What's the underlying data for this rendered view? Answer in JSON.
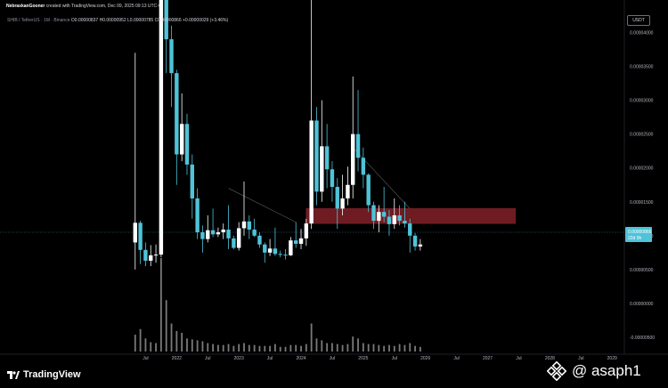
{
  "header": {
    "author": "NebraskanGooner",
    "created_text": "created with TradingView.com, Dec 09, 2025 09:13 UTC-6"
  },
  "symbol": {
    "pair": "SHIB / TetherUS · 1M · Binance",
    "ohlc": "O0.00000837 H0.00000952 L0.00000785 C0.00000866 +0.00000029 (+3.46%)"
  },
  "currency_badge": "USDT",
  "price_label": {
    "price": "0.00000866",
    "countdown": "22d 9h"
  },
  "footer": {
    "brand": "TradingView",
    "watermark": "@ asaph1"
  },
  "colors": {
    "up": "#ffffff",
    "down": "#4fc3d8",
    "zone": "#7a1f26",
    "volume": "#8f8f8f",
    "background": "#000000",
    "text": "#b2b5be"
  },
  "chart_data": {
    "type": "candlestick",
    "title": "SHIB / TetherUS · 1M · Binance",
    "ylim": [
      -7.5e-06,
      4.48e-05
    ],
    "y_ticks": [
      "0.00004000",
      "0.00003500",
      "0.00003000",
      "0.00002500",
      "0.00002000",
      "0.00001500",
      "0.00001000",
      "0.00000500",
      "0.00000000",
      "-0.00000500"
    ],
    "y_tick_values": [
      4e-05,
      3.5e-05,
      3e-05,
      2.5e-05,
      2e-05,
      1.5e-05,
      1e-05,
      5e-06,
      0,
      -5e-06
    ],
    "x_ticks": [
      "Jul",
      "2022",
      "Jul",
      "2023",
      "Jul",
      "2024",
      "Jul",
      "2025",
      "Jul",
      "2026",
      "Jul",
      "2027",
      "Jul",
      "2028",
      "Jul",
      "2029"
    ],
    "x_tick_months": [
      6,
      12,
      18,
      24,
      30,
      36,
      42,
      48,
      54,
      60,
      66,
      72,
      78,
      84,
      90,
      96
    ],
    "x_axis_origin": "2021-01",
    "resistance_zone": {
      "from": "2024-02",
      "to": "2027-06",
      "low": 1.18e-05,
      "high": 1.4e-05
    },
    "grid": false,
    "candles": [
      {
        "m": "2021-05",
        "o": 9e-06,
        "h": 3.7e-05,
        "l": 5e-06,
        "c": 1.19e-05
      },
      {
        "m": "2021-06",
        "o": 1.19e-05,
        "h": 1.22e-05,
        "l": 5.8e-06,
        "c": 7.9e-06
      },
      {
        "m": "2021-07",
        "o": 7.9e-06,
        "h": 9e-06,
        "l": 5.5e-06,
        "c": 6.3e-06
      },
      {
        "m": "2021-08",
        "o": 6.3e-06,
        "h": 8.6e-06,
        "l": 5.5e-06,
        "c": 7.1e-06
      },
      {
        "m": "2021-09",
        "o": 7.1e-06,
        "h": 8.7e-06,
        "l": 6e-06,
        "c": 7.2e-06
      },
      {
        "m": "2021-10",
        "o": 7.2e-06,
        "h": 8.8e-05,
        "l": 6.8e-06,
        "c": 5.7e-05
      },
      {
        "m": "2021-11",
        "o": 5.7e-05,
        "h": 5.95e-05,
        "l": 3.4e-05,
        "c": 3.9e-05
      },
      {
        "m": "2021-12",
        "o": 3.9e-05,
        "h": 4.1e-05,
        "l": 2.9e-05,
        "c": 3.4e-05
      },
      {
        "m": "2022-01",
        "o": 3.4e-05,
        "h": 3.45e-05,
        "l": 1.75e-05,
        "c": 2.2e-05
      },
      {
        "m": "2022-02",
        "o": 2.2e-05,
        "h": 3.1e-05,
        "l": 2.1e-05,
        "c": 2.65e-05
      },
      {
        "m": "2022-03",
        "o": 2.65e-05,
        "h": 2.8e-05,
        "l": 1.9e-05,
        "c": 2.05e-05
      },
      {
        "m": "2022-04",
        "o": 2.05e-05,
        "h": 2.2e-05,
        "l": 1.25e-05,
        "c": 1.55e-05
      },
      {
        "m": "2022-05",
        "o": 1.55e-05,
        "h": 1.7e-05,
        "l": 9.5e-06,
        "c": 1.05e-05
      },
      {
        "m": "2022-06",
        "o": 1.05e-05,
        "h": 1.15e-05,
        "l": 7.5e-06,
        "c": 9.5e-06
      },
      {
        "m": "2022-07",
        "o": 9.5e-06,
        "h": 1.3e-05,
        "l": 9e-06,
        "c": 1.08e-05
      },
      {
        "m": "2022-08",
        "o": 1.08e-05,
        "h": 1.4e-05,
        "l": 9.8e-06,
        "c": 1.02e-05
      },
      {
        "m": "2022-09",
        "o": 1.02e-05,
        "h": 1.12e-05,
        "l": 9.8e-06,
        "c": 1.05e-05
      },
      {
        "m": "2022-10",
        "o": 1.05e-05,
        "h": 1.18e-05,
        "l": 9.5e-06,
        "c": 1.09e-05
      },
      {
        "m": "2022-11",
        "o": 1.09e-05,
        "h": 1.45e-05,
        "l": 8e-06,
        "c": 9.6e-06
      },
      {
        "m": "2022-12",
        "o": 9.6e-06,
        "h": 1e-05,
        "l": 8e-06,
        "c": 8.2e-06
      },
      {
        "m": "2023-01",
        "o": 8.2e-06,
        "h": 1.2e-05,
        "l": 7.8e-06,
        "c": 1.11e-05
      },
      {
        "m": "2023-02",
        "o": 1.11e-05,
        "h": 1.8e-05,
        "l": 1e-05,
        "c": 1.21e-05
      },
      {
        "m": "2023-03",
        "o": 1.21e-05,
        "h": 1.3e-05,
        "l": 9.5e-06,
        "c": 1.09e-05
      },
      {
        "m": "2023-04",
        "o": 1.09e-05,
        "h": 1.25e-05,
        "l": 9.8e-06,
        "c": 1e-05
      },
      {
        "m": "2023-05",
        "o": 1e-05,
        "h": 1.05e-05,
        "l": 8.2e-06,
        "c": 8.7e-06
      },
      {
        "m": "2023-06",
        "o": 8.7e-06,
        "h": 9e-06,
        "l": 6e-06,
        "c": 7.5e-06
      },
      {
        "m": "2023-07",
        "o": 7.5e-06,
        "h": 9.5e-06,
        "l": 7e-06,
        "c": 8.1e-06
      },
      {
        "m": "2023-08",
        "o": 8.1e-06,
        "h": 1.12e-05,
        "l": 7e-06,
        "c": 7.3e-06
      },
      {
        "m": "2023-09",
        "o": 7.3e-06,
        "h": 7.8e-06,
        "l": 6.8e-06,
        "c": 7.2e-06
      },
      {
        "m": "2023-10",
        "o": 7.2e-06,
        "h": 8e-06,
        "l": 6.5e-06,
        "c": 7.1e-06
      },
      {
        "m": "2023-11",
        "o": 7.1e-06,
        "h": 9.8e-06,
        "l": 7e-06,
        "c": 9.3e-06
      },
      {
        "m": "2023-12",
        "o": 9.3e-06,
        "h": 1.2e-05,
        "l": 8.2e-06,
        "c": 8.8e-06
      },
      {
        "m": "2024-01",
        "o": 8.8e-06,
        "h": 1.1e-05,
        "l": 8e-06,
        "c": 9.6e-06
      },
      {
        "m": "2024-02",
        "o": 9.6e-06,
        "h": 1.25e-05,
        "l": 8.5e-06,
        "c": 1.18e-05
      },
      {
        "m": "2024-03",
        "o": 1.18e-05,
        "h": 4.55e-05,
        "l": 1.1e-05,
        "c": 2.7e-05
      },
      {
        "m": "2024-04",
        "o": 2.7e-05,
        "h": 2.9e-05,
        "l": 1.45e-05,
        "c": 1.65e-05
      },
      {
        "m": "2024-05",
        "o": 1.65e-05,
        "h": 3e-05,
        "l": 1.5e-05,
        "c": 2.32e-05
      },
      {
        "m": "2024-06",
        "o": 2.32e-05,
        "h": 2.65e-05,
        "l": 1.7e-05,
        "c": 1.98e-05
      },
      {
        "m": "2024-07",
        "o": 1.98e-05,
        "h": 2.1e-05,
        "l": 1.5e-05,
        "c": 1.72e-05
      },
      {
        "m": "2024-08",
        "o": 1.72e-05,
        "h": 1.85e-05,
        "l": 1.1e-05,
        "c": 1.4e-05
      },
      {
        "m": "2024-09",
        "o": 1.4e-05,
        "h": 1.9e-05,
        "l": 1.3e-05,
        "c": 1.55e-05
      },
      {
        "m": "2024-10",
        "o": 1.55e-05,
        "h": 2.02e-05,
        "l": 1.45e-05,
        "c": 1.75e-05
      },
      {
        "m": "2024-11",
        "o": 1.75e-05,
        "h": 3.35e-05,
        "l": 1.55e-05,
        "c": 2.5e-05
      },
      {
        "m": "2024-12",
        "o": 2.5e-05,
        "h": 3.15e-05,
        "l": 1.95e-05,
        "c": 2.15e-05
      },
      {
        "m": "2025-01",
        "o": 2.15e-05,
        "h": 2.3e-05,
        "l": 1.7e-05,
        "c": 1.9e-05
      },
      {
        "m": "2025-02",
        "o": 1.9e-05,
        "h": 1.92e-05,
        "l": 1.35e-05,
        "c": 1.45e-05
      },
      {
        "m": "2025-03",
        "o": 1.45e-05,
        "h": 1.5e-05,
        "l": 1.1e-05,
        "c": 1.22e-05
      },
      {
        "m": "2025-04",
        "o": 1.22e-05,
        "h": 1.45e-05,
        "l": 1.05e-05,
        "c": 1.35e-05
      },
      {
        "m": "2025-05",
        "o": 1.35e-05,
        "h": 1.72e-05,
        "l": 1.2e-05,
        "c": 1.28e-05
      },
      {
        "m": "2025-06",
        "o": 1.28e-05,
        "h": 1.38e-05,
        "l": 1e-05,
        "c": 1.17e-05
      },
      {
        "m": "2025-07",
        "o": 1.17e-05,
        "h": 1.55e-05,
        "l": 1.1e-05,
        "c": 1.3e-05
      },
      {
        "m": "2025-08",
        "o": 1.3e-05,
        "h": 1.45e-05,
        "l": 1.15e-05,
        "c": 1.22e-05
      },
      {
        "m": "2025-09",
        "o": 1.22e-05,
        "h": 1.5e-05,
        "l": 1.12e-05,
        "c": 1.18e-05
      },
      {
        "m": "2025-10",
        "o": 1.18e-05,
        "h": 1.25e-05,
        "l": 7.5e-06,
        "c": 1e-05
      },
      {
        "m": "2025-11",
        "o": 1e-05,
        "h": 1.04e-05,
        "l": 7.8e-06,
        "c": 8.4e-06
      },
      {
        "m": "2025-12",
        "o": 8.4e-06,
        "h": 9.5e-06,
        "l": 7.8e-06,
        "c": 8.7e-06
      }
    ],
    "volume": [
      18,
      24,
      14,
      10,
      9,
      100,
      55,
      30,
      22,
      20,
      14,
      13,
      12,
      11,
      9,
      8,
      7,
      7,
      8,
      6,
      8,
      9,
      7,
      7,
      6,
      6,
      6,
      8,
      5,
      5,
      7,
      7,
      6,
      8,
      30,
      14,
      12,
      9,
      9,
      8,
      7,
      8,
      16,
      14,
      9,
      8,
      8,
      7,
      6,
      7,
      6,
      8,
      7,
      9,
      6,
      5
    ]
  }
}
